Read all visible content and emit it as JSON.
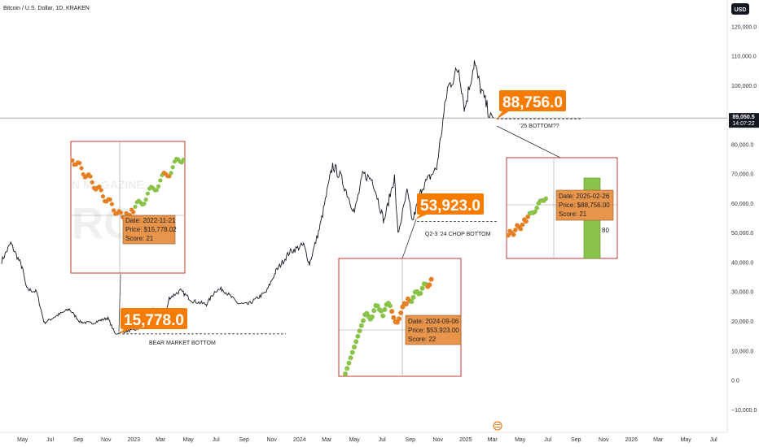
{
  "header": {
    "symbol_title": "Bitcoin / U.S. Dollar, 1D, KRAKEN",
    "currency_badge": "USD"
  },
  "price_axis": {
    "ticks": [
      "120,000.0",
      "110,000.0",
      "100,000.0",
      "90,000.0",
      "80,000.0",
      "70,000.0",
      "60,000.0",
      "50,000.0",
      "40,000.0",
      "30,000.0",
      "20,000.0",
      "10,000.0",
      "0.0",
      "−10,000.0"
    ],
    "current_price": "89,050.5",
    "countdown": "14:07:22"
  },
  "time_axis": {
    "ticks": [
      "May",
      "Jul",
      "Sep",
      "Nov",
      "2023",
      "Mar",
      "May",
      "Jul",
      "Sep",
      "Nov",
      "2024",
      "Mar",
      "May",
      "Jul",
      "Sep",
      "Nov",
      "2025",
      "Mar",
      "May",
      "Jul",
      "Sep",
      "Nov",
      "2026",
      "Mar",
      "May",
      "Jul"
    ]
  },
  "callouts": [
    {
      "value": "15,778.0",
      "label": "BEAR MARKET BOTTOM"
    },
    {
      "value": "53,923.0",
      "label": "Q2-3 '24 CHOP BOTTOM"
    },
    {
      "value": "88,756.0",
      "label": "'25 BOTTOM??"
    }
  ],
  "insets": [
    {
      "date": "Date: 2022-11-21",
      "price": "Price: $15,778.02",
      "score": "Score: 21",
      "watermark": "N MAGAZINE"
    },
    {
      "date": "Date: 2024-09-06",
      "price": "Price: $53,923.00",
      "score": "Score: 22"
    },
    {
      "date": "Date: 2025-02-26",
      "price": "Price: $88,756.00",
      "score": "Score: 21",
      "bar_label": "80"
    }
  ],
  "colors": {
    "candle": "#131722",
    "accent": "#f57c00",
    "score_green": "#8bc34a",
    "score_orange": "#e67e22",
    "inset_border": "#c0392b",
    "tooltip_bg": "#e8944a"
  },
  "chart_data": {
    "type": "line",
    "x_start": "2022-03-16",
    "x_end": "2026-07-15",
    "ylim": [
      -15000,
      125000
    ],
    "points": [
      [
        "2022-03-16",
        40500
      ],
      [
        "2022-04-05",
        46500
      ],
      [
        "2022-04-30",
        38500
      ],
      [
        "2022-05-10",
        31000
      ],
      [
        "2022-06-01",
        30000
      ],
      [
        "2022-06-18",
        19500
      ],
      [
        "2022-07-10",
        21500
      ],
      [
        "2022-08-12",
        24200
      ],
      [
        "2022-09-05",
        19800
      ],
      [
        "2022-10-01",
        19400
      ],
      [
        "2022-11-05",
        21200
      ],
      [
        "2022-11-21",
        15778
      ],
      [
        "2022-12-20",
        16800
      ],
      [
        "2023-01-10",
        17300
      ],
      [
        "2023-01-25",
        23000
      ],
      [
        "2023-02-20",
        24500
      ],
      [
        "2023-03-10",
        20000
      ],
      [
        "2023-03-20",
        28000
      ],
      [
        "2023-04-14",
        30400
      ],
      [
        "2023-05-10",
        27000
      ],
      [
        "2023-06-10",
        25800
      ],
      [
        "2023-06-30",
        30500
      ],
      [
        "2023-07-15",
        31000
      ],
      [
        "2023-08-20",
        26000
      ],
      [
        "2023-09-10",
        25800
      ],
      [
        "2023-10-20",
        30000
      ],
      [
        "2023-11-10",
        37000
      ],
      [
        "2023-12-10",
        43500
      ],
      [
        "2024-01-10",
        46000
      ],
      [
        "2024-01-23",
        39500
      ],
      [
        "2024-02-15",
        52000
      ],
      [
        "2024-03-14",
        73000
      ],
      [
        "2024-04-01",
        69000
      ],
      [
        "2024-05-01",
        57000
      ],
      [
        "2024-05-20",
        70000
      ],
      [
        "2024-06-10",
        68000
      ],
      [
        "2024-07-05",
        54000
      ],
      [
        "2024-07-28",
        69000
      ],
      [
        "2024-08-05",
        49500
      ],
      [
        "2024-08-25",
        64000
      ],
      [
        "2024-09-06",
        53923
      ],
      [
        "2024-09-27",
        65500
      ],
      [
        "2024-10-29",
        72000
      ],
      [
        "2024-11-12",
        88000
      ],
      [
        "2024-11-22",
        99000
      ],
      [
        "2024-12-17",
        106000
      ],
      [
        "2024-12-30",
        92000
      ],
      [
        "2025-01-20",
        108000
      ],
      [
        "2025-02-01",
        100000
      ],
      [
        "2025-02-26",
        88756
      ],
      [
        "2025-03-04",
        89050
      ]
    ],
    "levels": [
      {
        "label": "BEAR MARKET BOTTOM",
        "value": 15778
      },
      {
        "label": "Q2-3 '24 CHOP BOTTOM",
        "value": 53923
      },
      {
        "label": "'25 BOTTOM??",
        "value": 88756
      }
    ],
    "current_price": 89050.5
  }
}
